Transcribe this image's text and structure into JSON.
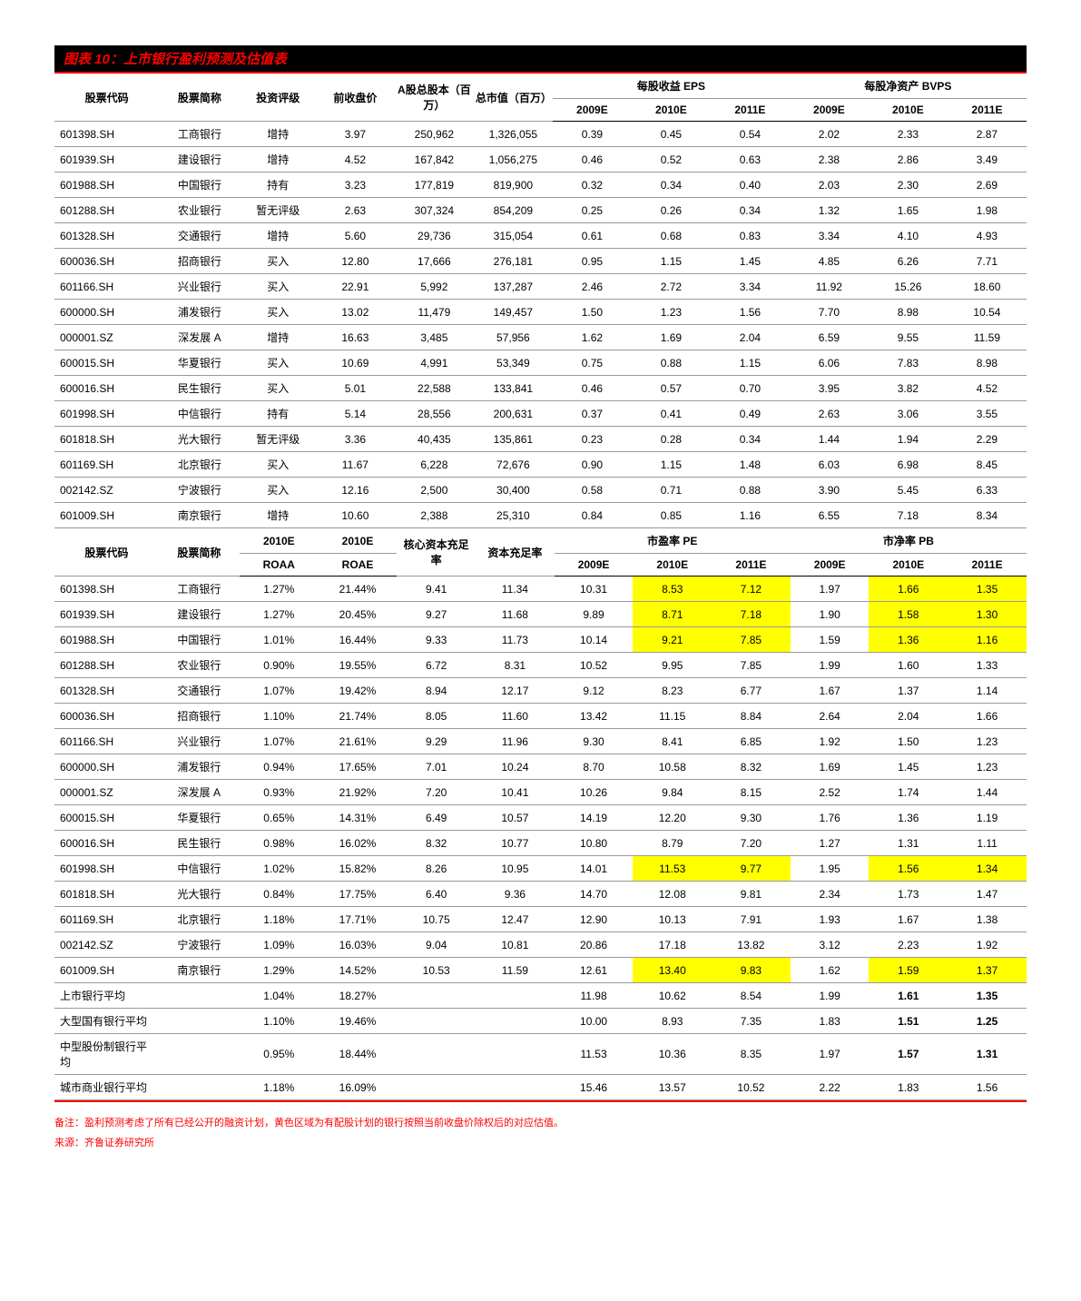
{
  "title": "图表 10：上市银行盈利预测及估值表",
  "t1_headers": {
    "code": "股票代码",
    "name": "股票简称",
    "rating": "投资评级",
    "close": "前收盘价",
    "shares": "A股总股本（百万）",
    "mcap": "总市值（百万）",
    "eps": "每股收益 EPS",
    "bvps": "每股净资产 BVPS",
    "y09": "2009E",
    "y10": "2010E",
    "y11": "2011E"
  },
  "t1_rows": [
    [
      "601398.SH",
      "工商银行",
      "增持",
      "3.97",
      "250,962",
      "1,326,055",
      "0.39",
      "0.45",
      "0.54",
      "2.02",
      "2.33",
      "2.87"
    ],
    [
      "601939.SH",
      "建设银行",
      "增持",
      "4.52",
      "167,842",
      "1,056,275",
      "0.46",
      "0.52",
      "0.63",
      "2.38",
      "2.86",
      "3.49"
    ],
    [
      "601988.SH",
      "中国银行",
      "持有",
      "3.23",
      "177,819",
      "819,900",
      "0.32",
      "0.34",
      "0.40",
      "2.03",
      "2.30",
      "2.69"
    ],
    [
      "601288.SH",
      "农业银行",
      "暂无评级",
      "2.63",
      "307,324",
      "854,209",
      "0.25",
      "0.26",
      "0.34",
      "1.32",
      "1.65",
      "1.98"
    ],
    [
      "601328.SH",
      "交通银行",
      "增持",
      "5.60",
      "29,736",
      "315,054",
      "0.61",
      "0.68",
      "0.83",
      "3.34",
      "4.10",
      "4.93"
    ],
    [
      "600036.SH",
      "招商银行",
      "买入",
      "12.80",
      "17,666",
      "276,181",
      "0.95",
      "1.15",
      "1.45",
      "4.85",
      "6.26",
      "7.71"
    ],
    [
      "601166.SH",
      "兴业银行",
      "买入",
      "22.91",
      "5,992",
      "137,287",
      "2.46",
      "2.72",
      "3.34",
      "11.92",
      "15.26",
      "18.60"
    ],
    [
      "600000.SH",
      "浦发银行",
      "买入",
      "13.02",
      "11,479",
      "149,457",
      "1.50",
      "1.23",
      "1.56",
      "7.70",
      "8.98",
      "10.54"
    ],
    [
      "000001.SZ",
      "深发展 A",
      "增持",
      "16.63",
      "3,485",
      "57,956",
      "1.62",
      "1.69",
      "2.04",
      "6.59",
      "9.55",
      "11.59"
    ],
    [
      "600015.SH",
      "华夏银行",
      "买入",
      "10.69",
      "4,991",
      "53,349",
      "0.75",
      "0.88",
      "1.15",
      "6.06",
      "7.83",
      "8.98"
    ],
    [
      "600016.SH",
      "民生银行",
      "买入",
      "5.01",
      "22,588",
      "133,841",
      "0.46",
      "0.57",
      "0.70",
      "3.95",
      "3.82",
      "4.52"
    ],
    [
      "601998.SH",
      "中信银行",
      "持有",
      "5.14",
      "28,556",
      "200,631",
      "0.37",
      "0.41",
      "0.49",
      "2.63",
      "3.06",
      "3.55"
    ],
    [
      "601818.SH",
      "光大银行",
      "暂无评级",
      "3.36",
      "40,435",
      "135,861",
      "0.23",
      "0.28",
      "0.34",
      "1.44",
      "1.94",
      "2.29"
    ],
    [
      "601169.SH",
      "北京银行",
      "买入",
      "11.67",
      "6,228",
      "72,676",
      "0.90",
      "1.15",
      "1.48",
      "6.03",
      "6.98",
      "8.45"
    ],
    [
      "002142.SZ",
      "宁波银行",
      "买入",
      "12.16",
      "2,500",
      "30,400",
      "0.58",
      "0.71",
      "0.88",
      "3.90",
      "5.45",
      "6.33"
    ],
    [
      "601009.SH",
      "南京银行",
      "增持",
      "10.60",
      "2,388",
      "25,310",
      "0.84",
      "0.85",
      "1.16",
      "6.55",
      "7.18",
      "8.34"
    ]
  ],
  "t2_headers": {
    "code": "股票代码",
    "name": "股票简称",
    "roaa_h": "2010E",
    "roaa": "ROAA",
    "roae_h": "2010E",
    "roae": "ROAE",
    "core": "核心资本充足率",
    "car": "资本充足率",
    "pe": "市盈率 PE",
    "pb": "市净率 PB",
    "y09": "2009E",
    "y10": "2010E",
    "y11": "2011E"
  },
  "t2_rows": [
    {
      "d": [
        "601398.SH",
        "工商银行",
        "1.27%",
        "21.44%",
        "9.41",
        "11.34",
        "10.31",
        "8.53",
        "7.12",
        "1.97",
        "1.66",
        "1.35"
      ],
      "hl": [
        7,
        8,
        10,
        11
      ]
    },
    {
      "d": [
        "601939.SH",
        "建设银行",
        "1.27%",
        "20.45%",
        "9.27",
        "11.68",
        "9.89",
        "8.71",
        "7.18",
        "1.90",
        "1.58",
        "1.30"
      ],
      "hl": [
        7,
        8,
        10,
        11
      ]
    },
    {
      "d": [
        "601988.SH",
        "中国银行",
        "1.01%",
        "16.44%",
        "9.33",
        "11.73",
        "10.14",
        "9.21",
        "7.85",
        "1.59",
        "1.36",
        "1.16"
      ],
      "hl": [
        7,
        8,
        10,
        11
      ]
    },
    {
      "d": [
        "601288.SH",
        "农业银行",
        "0.90%",
        "19.55%",
        "6.72",
        "8.31",
        "10.52",
        "9.95",
        "7.85",
        "1.99",
        "1.60",
        "1.33"
      ],
      "hl": []
    },
    {
      "d": [
        "601328.SH",
        "交通银行",
        "1.07%",
        "19.42%",
        "8.94",
        "12.17",
        "9.12",
        "8.23",
        "6.77",
        "1.67",
        "1.37",
        "1.14"
      ],
      "hl": []
    },
    {
      "d": [
        "600036.SH",
        "招商银行",
        "1.10%",
        "21.74%",
        "8.05",
        "11.60",
        "13.42",
        "11.15",
        "8.84",
        "2.64",
        "2.04",
        "1.66"
      ],
      "hl": []
    },
    {
      "d": [
        "601166.SH",
        "兴业银行",
        "1.07%",
        "21.61%",
        "9.29",
        "11.96",
        "9.30",
        "8.41",
        "6.85",
        "1.92",
        "1.50",
        "1.23"
      ],
      "hl": []
    },
    {
      "d": [
        "600000.SH",
        "浦发银行",
        "0.94%",
        "17.65%",
        "7.01",
        "10.24",
        "8.70",
        "10.58",
        "8.32",
        "1.69",
        "1.45",
        "1.23"
      ],
      "hl": []
    },
    {
      "d": [
        "000001.SZ",
        "深发展 A",
        "0.93%",
        "21.92%",
        "7.20",
        "10.41",
        "10.26",
        "9.84",
        "8.15",
        "2.52",
        "1.74",
        "1.44"
      ],
      "hl": []
    },
    {
      "d": [
        "600015.SH",
        "华夏银行",
        "0.65%",
        "14.31%",
        "6.49",
        "10.57",
        "14.19",
        "12.20",
        "9.30",
        "1.76",
        "1.36",
        "1.19"
      ],
      "hl": []
    },
    {
      "d": [
        "600016.SH",
        "民生银行",
        "0.98%",
        "16.02%",
        "8.32",
        "10.77",
        "10.80",
        "8.79",
        "7.20",
        "1.27",
        "1.31",
        "1.11"
      ],
      "hl": []
    },
    {
      "d": [
        "601998.SH",
        "中信银行",
        "1.02%",
        "15.82%",
        "8.26",
        "10.95",
        "14.01",
        "11.53",
        "9.77",
        "1.95",
        "1.56",
        "1.34"
      ],
      "hl": [
        7,
        8,
        10,
        11
      ]
    },
    {
      "d": [
        "601818.SH",
        "光大银行",
        "0.84%",
        "17.75%",
        "6.40",
        "9.36",
        "14.70",
        "12.08",
        "9.81",
        "2.34",
        "1.73",
        "1.47"
      ],
      "hl": []
    },
    {
      "d": [
        "601169.SH",
        "北京银行",
        "1.18%",
        "17.71%",
        "10.75",
        "12.47",
        "12.90",
        "10.13",
        "7.91",
        "1.93",
        "1.67",
        "1.38"
      ],
      "hl": []
    },
    {
      "d": [
        "002142.SZ",
        "宁波银行",
        "1.09%",
        "16.03%",
        "9.04",
        "10.81",
        "20.86",
        "17.18",
        "13.82",
        "3.12",
        "2.23",
        "1.92"
      ],
      "hl": []
    },
    {
      "d": [
        "601009.SH",
        "南京银行",
        "1.29%",
        "14.52%",
        "10.53",
        "11.59",
        "12.61",
        "13.40",
        "9.83",
        "1.62",
        "1.59",
        "1.37"
      ],
      "hl": [
        7,
        8,
        10,
        11
      ]
    }
  ],
  "t2_sum": [
    {
      "d": [
        "上市银行平均",
        "",
        "1.04%",
        "18.27%",
        "",
        "",
        "11.98",
        "10.62",
        "8.54",
        "1.99",
        "1.61",
        "1.35"
      ],
      "b": [
        10,
        11
      ]
    },
    {
      "d": [
        "大型国有银行平均",
        "",
        "1.10%",
        "19.46%",
        "",
        "",
        "10.00",
        "8.93",
        "7.35",
        "1.83",
        "1.51",
        "1.25"
      ],
      "b": [
        10,
        11
      ]
    },
    {
      "d": [
        "中型股份制银行平均",
        "",
        "0.95%",
        "18.44%",
        "",
        "",
        "11.53",
        "10.36",
        "8.35",
        "1.97",
        "1.57",
        "1.31"
      ],
      "b": [
        10,
        11
      ]
    },
    {
      "d": [
        "城市商业银行平均",
        "",
        "1.18%",
        "16.09%",
        "",
        "",
        "15.46",
        "13.57",
        "10.52",
        "2.22",
        "1.83",
        "1.56"
      ],
      "b": []
    }
  ],
  "note1": "备注：盈利预测考虑了所有已经公开的融资计划，黄色区域为有配股计划的银行按照当前收盘价除权后的对应估值。",
  "note2": "来源：齐鲁证券研究所"
}
